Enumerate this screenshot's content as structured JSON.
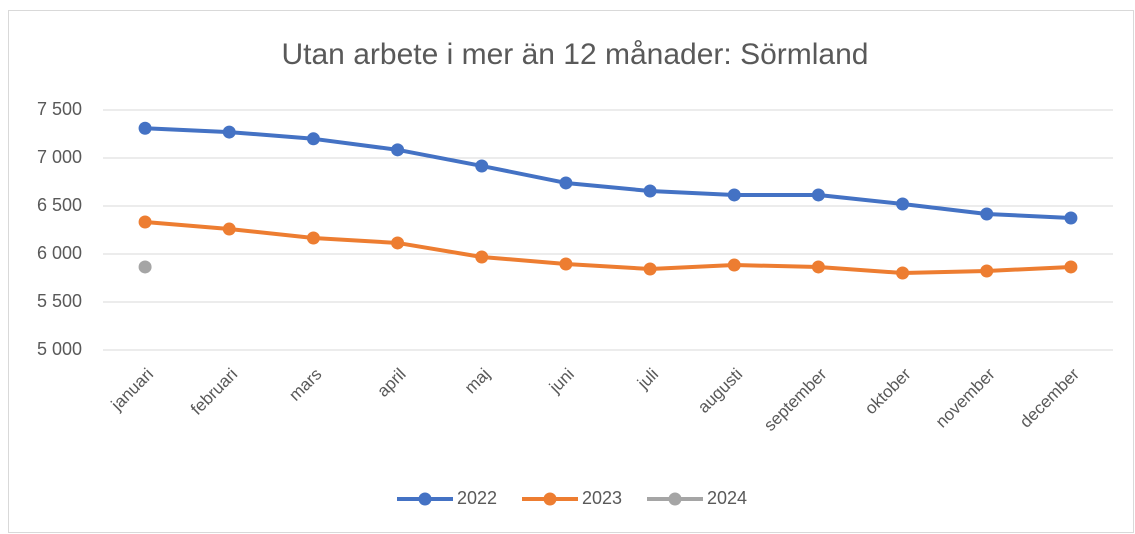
{
  "chart_data": {
    "type": "line",
    "title": "Utan arbete i mer än 12 månader: Sörmland",
    "categories": [
      "januari",
      "februari",
      "mars",
      "april",
      "maj",
      "juni",
      "juli",
      "augusti",
      "september",
      "oktober",
      "november",
      "december"
    ],
    "series": [
      {
        "name": "2022",
        "color": "#4472c4",
        "values": [
          7310,
          7270,
          7200,
          7085,
          6917,
          6740,
          6656,
          6615,
          6615,
          6521,
          6417,
          6375
        ]
      },
      {
        "name": "2023",
        "color": "#ed7d31",
        "values": [
          6333,
          6260,
          6167,
          6115,
          5969,
          5896,
          5844,
          5885,
          5865,
          5802,
          5823,
          5865
        ]
      },
      {
        "name": "2024",
        "color": "#a5a5a5",
        "values": [
          5865,
          null,
          null,
          null,
          null,
          null,
          null,
          null,
          null,
          null,
          null,
          null
        ]
      }
    ],
    "ylim": [
      5000,
      7500
    ],
    "yticks": [
      {
        "value": 5000,
        "label": "5 000"
      },
      {
        "value": 5500,
        "label": "5 500"
      },
      {
        "value": 6000,
        "label": "6 000"
      },
      {
        "value": 6500,
        "label": "6 500"
      },
      {
        "value": 7000,
        "label": "7 000"
      },
      {
        "value": 7500,
        "label": "7 500"
      }
    ],
    "grid": true,
    "legend": "bottom"
  }
}
